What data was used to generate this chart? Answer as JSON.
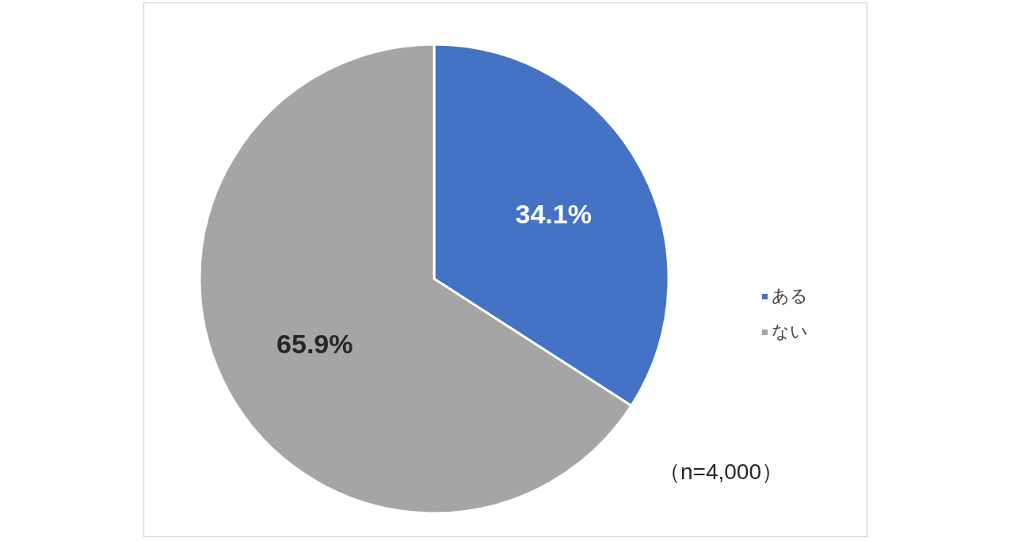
{
  "chart_data": {
    "type": "pie",
    "categories": [
      "ある",
      "ない"
    ],
    "values": [
      34.1,
      65.9
    ],
    "colors": [
      "#4472c4",
      "#a5a5a5"
    ],
    "value_labels": [
      "34.1%",
      "65.9%"
    ],
    "legend": "right",
    "annotations": [
      "（n=4,000）"
    ]
  }
}
